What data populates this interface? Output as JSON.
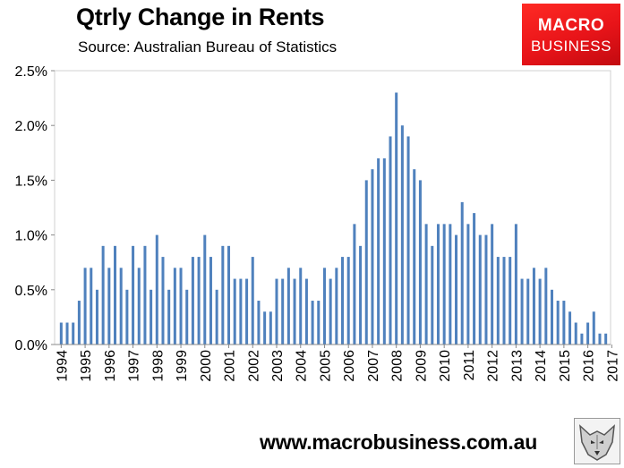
{
  "header": {
    "title": "Qtrly Change in Rents",
    "subtitle": "Source: Australian Bureau of Statistics"
  },
  "logo": {
    "line1": "MACRO",
    "line2": "BUSINESS",
    "color": "#e31b1d"
  },
  "footer": {
    "url": "www.macrobusiness.com.au",
    "mascot": "wolf-logo-icon"
  },
  "chart_data": {
    "type": "bar",
    "title": "Qtrly Change in Rents",
    "subtitle": "Source: Australian Bureau of Statistics",
    "xlabel": "",
    "ylabel": "",
    "ylim": [
      0,
      2.5
    ],
    "y_ticks": [
      0,
      0.5,
      1.0,
      1.5,
      2.0,
      2.5
    ],
    "y_tick_labels": [
      "0.0%",
      "0.5%",
      "1.0%",
      "1.5%",
      "2.0%",
      "2.5%"
    ],
    "x_tick_labels": [
      "1994",
      "1995",
      "1996",
      "1997",
      "1998",
      "1999",
      "2000",
      "2001",
      "2002",
      "2003",
      "2004",
      "2005",
      "2006",
      "2007",
      "2008",
      "2009",
      "2010",
      "2011",
      "2012",
      "2013",
      "2014",
      "2015",
      "2016",
      "2017"
    ],
    "first_year": 1994,
    "bar_color": "#4f81bd",
    "grid": false,
    "series": [
      {
        "name": "Qtrly change in rents (%)",
        "values": [
          0.2,
          0.2,
          0.2,
          0.4,
          0.7,
          0.7,
          0.5,
          0.9,
          0.7,
          0.9,
          0.7,
          0.5,
          0.9,
          0.7,
          0.9,
          0.5,
          1.0,
          0.8,
          0.5,
          0.7,
          0.7,
          0.5,
          0.8,
          0.8,
          1.0,
          0.8,
          0.5,
          0.9,
          0.9,
          0.6,
          0.6,
          0.6,
          0.8,
          0.4,
          0.3,
          0.3,
          0.6,
          0.6,
          0.7,
          0.6,
          0.7,
          0.6,
          0.4,
          0.4,
          0.7,
          0.6,
          0.7,
          0.8,
          0.8,
          1.1,
          0.9,
          1.5,
          1.6,
          1.7,
          1.7,
          1.9,
          2.3,
          2.0,
          1.9,
          1.6,
          1.5,
          1.1,
          0.9,
          1.1,
          1.1,
          1.1,
          1.0,
          1.3,
          1.1,
          1.2,
          1.0,
          1.0,
          1.1,
          0.8,
          0.8,
          0.8,
          1.1,
          0.6,
          0.6,
          0.7,
          0.6,
          0.7,
          0.5,
          0.4,
          0.4,
          0.3,
          0.2,
          0.1,
          0.2,
          0.3,
          0.1,
          0.1
        ]
      }
    ]
  }
}
